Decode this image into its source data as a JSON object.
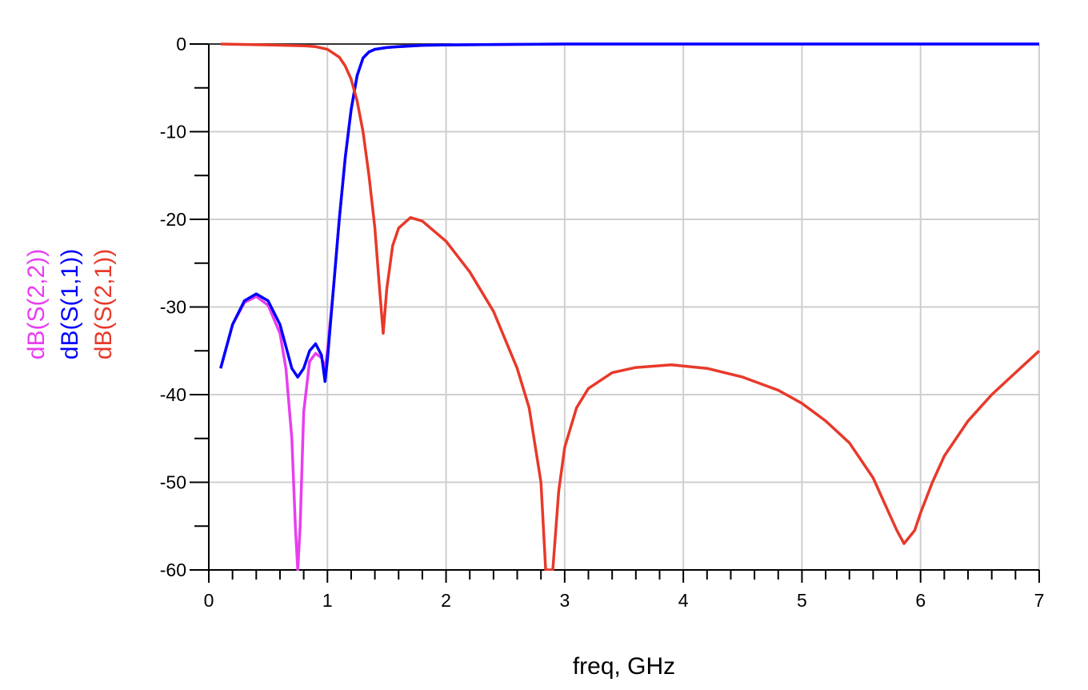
{
  "chart_data": {
    "type": "line",
    "title": "",
    "xlabel": "freq, GHz",
    "xlim": [
      0,
      7
    ],
    "ylim": [
      -60,
      0
    ],
    "x_ticks": [
      0,
      1,
      2,
      3,
      4,
      5,
      6,
      7
    ],
    "y_ticks": [
      0,
      -10,
      -20,
      -30,
      -40,
      -50,
      -60
    ],
    "x_minor_step": 0.2,
    "y_minor_step": 5,
    "grid": true,
    "series": [
      {
        "name": "dB(S(2,2))",
        "color": "#e83ef0",
        "x": [
          0.1,
          0.2,
          0.3,
          0.4,
          0.5,
          0.6,
          0.65,
          0.7,
          0.73,
          0.75,
          0.77,
          0.8,
          0.85,
          0.9,
          0.95,
          0.98,
          1.0,
          1.05,
          1.1,
          1.15,
          1.2,
          1.25,
          1.3,
          1.35,
          1.4,
          1.5,
          1.6,
          1.8,
          2.0,
          3.0,
          4.0,
          5.0,
          6.0,
          7.0
        ],
        "y": [
          -37,
          -32,
          -29.5,
          -28.8,
          -29.8,
          -33,
          -37,
          -45,
          -55,
          -60,
          -55,
          -42,
          -36.2,
          -35.3,
          -35.8,
          -37,
          -35,
          -28,
          -20,
          -13,
          -7.5,
          -3.6,
          -1.6,
          -0.9,
          -0.6,
          -0.4,
          -0.3,
          -0.15,
          -0.1,
          0,
          0,
          0,
          0,
          0
        ]
      },
      {
        "name": "dB(S(1,1))",
        "color": "#0000ff",
        "x": [
          0.1,
          0.2,
          0.3,
          0.4,
          0.5,
          0.6,
          0.65,
          0.7,
          0.75,
          0.8,
          0.85,
          0.9,
          0.95,
          0.98,
          1.0,
          1.05,
          1.1,
          1.15,
          1.2,
          1.25,
          1.3,
          1.35,
          1.4,
          1.5,
          1.6,
          1.8,
          2.0,
          3.0,
          4.0,
          5.0,
          6.0,
          7.0
        ],
        "y": [
          -37,
          -32,
          -29.3,
          -28.5,
          -29.3,
          -32,
          -34.5,
          -37,
          -38,
          -37,
          -35,
          -34.2,
          -35.5,
          -38.5,
          -36,
          -28,
          -20,
          -13,
          -7.5,
          -3.6,
          -1.6,
          -0.9,
          -0.6,
          -0.4,
          -0.3,
          -0.15,
          -0.1,
          0,
          0,
          0,
          0,
          0
        ]
      },
      {
        "name": "dB(S(2,1))",
        "color": "#e8392a",
        "x": [
          0.1,
          0.5,
          0.8,
          0.9,
          1.0,
          1.1,
          1.15,
          1.2,
          1.25,
          1.3,
          1.35,
          1.4,
          1.44,
          1.47,
          1.5,
          1.55,
          1.6,
          1.7,
          1.8,
          2.0,
          2.2,
          2.4,
          2.6,
          2.7,
          2.8,
          2.84,
          2.9,
          2.95,
          3.0,
          3.1,
          3.2,
          3.4,
          3.6,
          3.9,
          4.2,
          4.5,
          4.8,
          5.0,
          5.2,
          5.4,
          5.6,
          5.7,
          5.8,
          5.86,
          5.95,
          6.0,
          6.1,
          6.2,
          6.4,
          6.6,
          6.8,
          7.0
        ],
        "y": [
          0,
          -0.1,
          -0.2,
          -0.3,
          -0.6,
          -1.5,
          -2.5,
          -4,
          -6.5,
          -10,
          -15,
          -21,
          -28,
          -33,
          -28,
          -23,
          -21,
          -19.8,
          -20.2,
          -22.5,
          -26,
          -30.5,
          -37,
          -41.5,
          -50,
          -60,
          -60,
          -51,
          -46,
          -41.5,
          -39.3,
          -37.5,
          -36.9,
          -36.6,
          -37,
          -38,
          -39.5,
          -41,
          -43,
          -45.5,
          -49.5,
          -52.5,
          -55.5,
          -57,
          -55.5,
          -53.5,
          -50,
          -47,
          -43,
          -40,
          -37.5,
          -35
        ]
      }
    ]
  }
}
